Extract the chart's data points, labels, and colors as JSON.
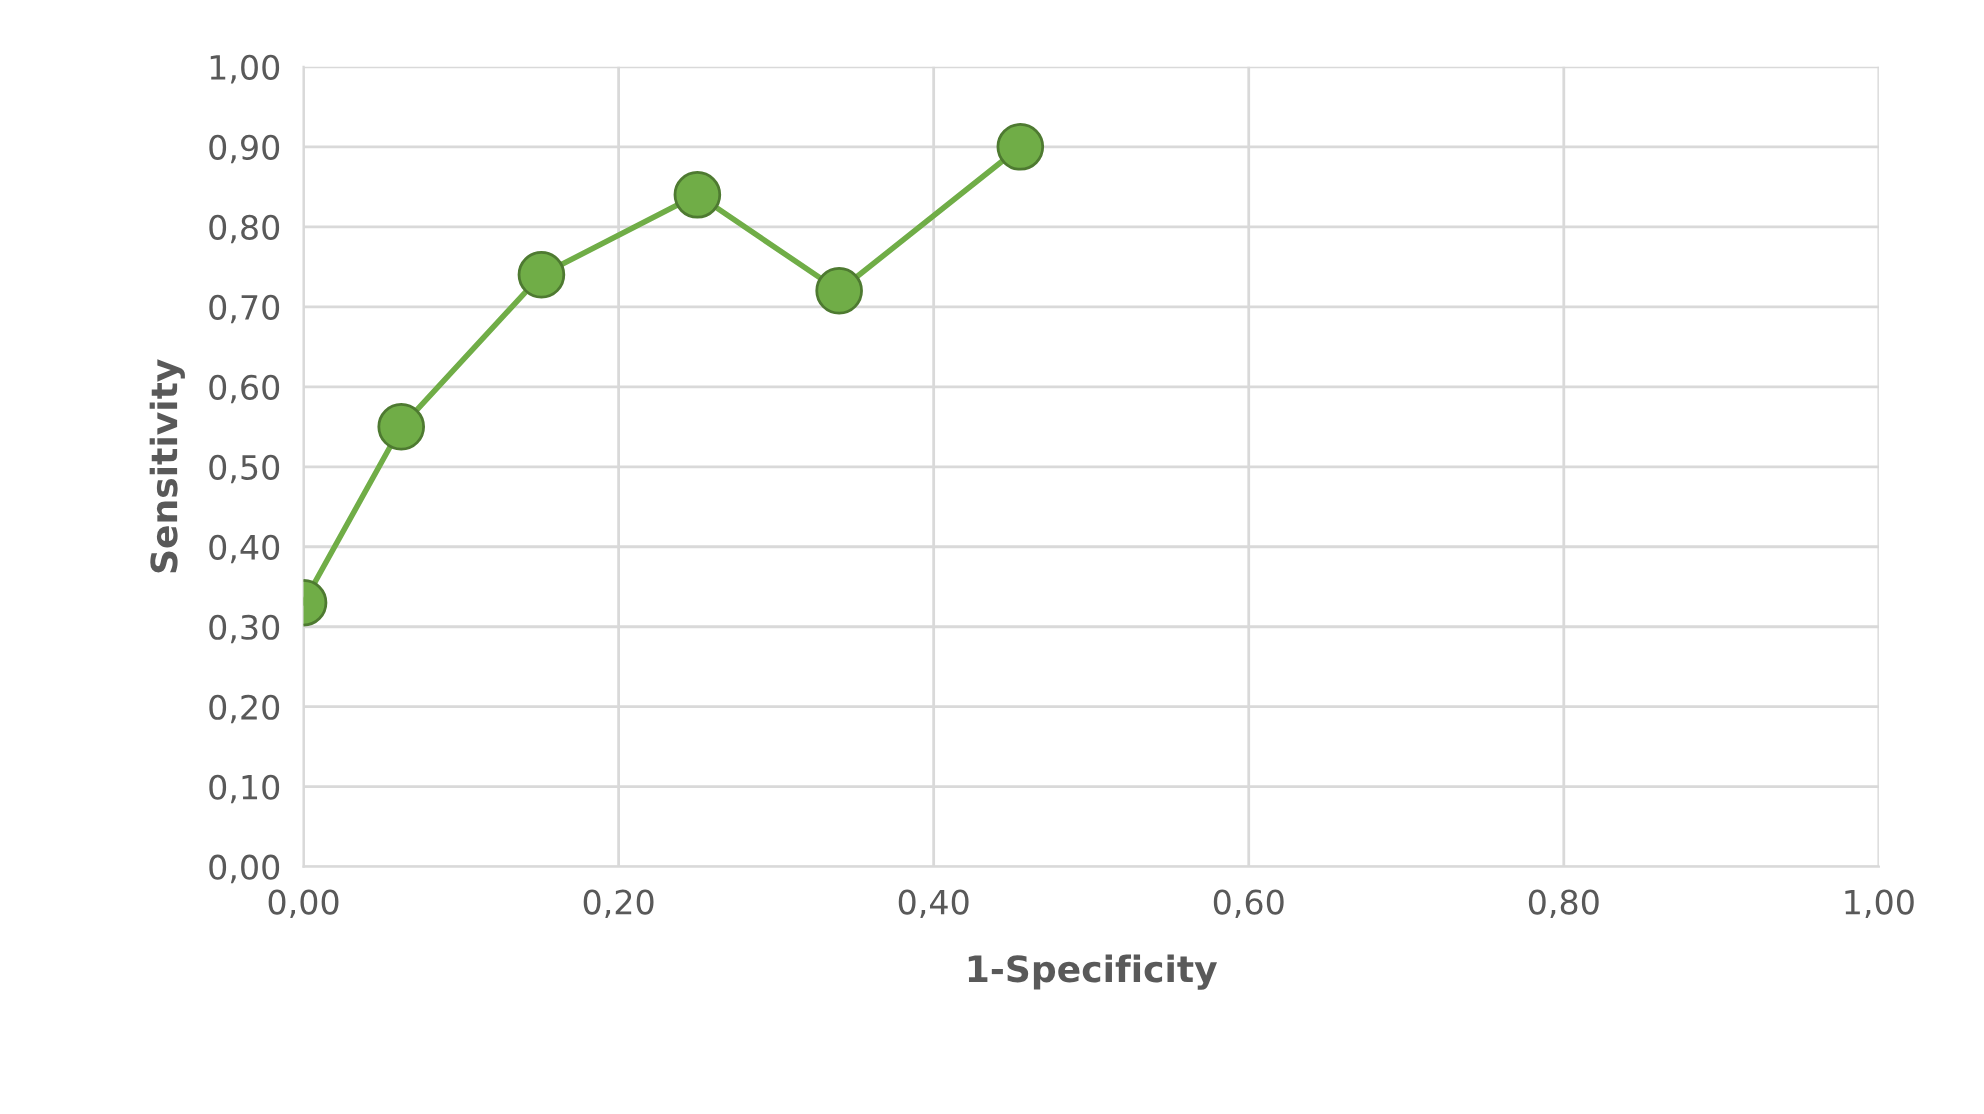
{
  "chart_data": {
    "type": "line",
    "xlabel": "1-Specificity",
    "ylabel": "Sensitivity",
    "x": [
      0,
      0.062,
      0.151,
      0.25,
      0.34,
      0.455
    ],
    "series": [
      {
        "color": "#70ad47",
        "values": [
          0.33,
          0.55,
          0.74,
          0.84,
          0.72,
          0.9
        ]
      }
    ],
    "xlim": [
      0,
      1
    ],
    "ylim": [
      0,
      1
    ],
    "xticks": [
      {
        "value": 0,
        "label": "0,00"
      },
      {
        "value": 0.2,
        "label": "0,20"
      },
      {
        "value": 0.4,
        "label": "0,40"
      },
      {
        "value": 0.6,
        "label": "0,60"
      },
      {
        "value": 0.8,
        "label": "0,80"
      },
      {
        "value": 1,
        "label": "1,00"
      }
    ],
    "yticks": [
      {
        "value": 0,
        "label": "0,00"
      },
      {
        "value": 0.1,
        "label": "0,10"
      },
      {
        "value": 0.2,
        "label": "0,20"
      },
      {
        "value": 0.3,
        "label": "0,30"
      },
      {
        "value": 0.4,
        "label": "0,40"
      },
      {
        "value": 0.5,
        "label": "0,50"
      },
      {
        "value": 0.6,
        "label": "0,60"
      },
      {
        "value": 0.7,
        "label": "0,70"
      },
      {
        "value": 0.8,
        "label": "0,80"
      },
      {
        "value": 0.9,
        "label": "0,90"
      },
      {
        "value": 1,
        "label": "1,00"
      }
    ],
    "grid": true,
    "marker": "circle",
    "line_style": "solid"
  }
}
